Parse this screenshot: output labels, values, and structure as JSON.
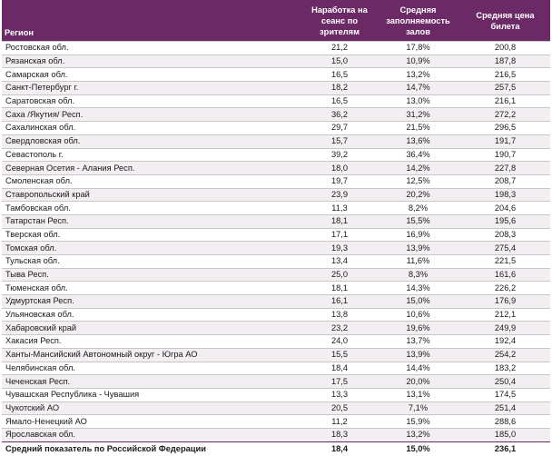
{
  "columns": {
    "region": "Регион",
    "sessions": "Наработка на сеанс по зрителям",
    "occupancy": "Средняя заполняемость залов",
    "price": "Средняя цена билета"
  },
  "rows": [
    {
      "region": "Ростовская обл.",
      "sessions": "21,2",
      "occupancy": "17,8%",
      "price": "200,8"
    },
    {
      "region": "Рязанская обл.",
      "sessions": "15,0",
      "occupancy": "10,9%",
      "price": "187,8"
    },
    {
      "region": "Самарская обл.",
      "sessions": "16,5",
      "occupancy": "13,2%",
      "price": "216,5"
    },
    {
      "region": "Санкт-Петербург г.",
      "sessions": "18,2",
      "occupancy": "14,7%",
      "price": "257,5"
    },
    {
      "region": "Саратовская обл.",
      "sessions": "16,5",
      "occupancy": "13,0%",
      "price": "216,1"
    },
    {
      "region": "Саха /Якутия/ Респ.",
      "sessions": "36,2",
      "occupancy": "31,2%",
      "price": "272,2"
    },
    {
      "region": "Сахалинская обл.",
      "sessions": "29,7",
      "occupancy": "21,5%",
      "price": "296,5"
    },
    {
      "region": "Свердловская обл.",
      "sessions": "15,7",
      "occupancy": "13,6%",
      "price": "191,7"
    },
    {
      "region": "Севастополь г.",
      "sessions": "39,2",
      "occupancy": "36,4%",
      "price": "190,7"
    },
    {
      "region": "Северная Осетия - Алания Респ.",
      "sessions": "18,0",
      "occupancy": "14,2%",
      "price": "227,8"
    },
    {
      "region": "Смоленская обл.",
      "sessions": "19,7",
      "occupancy": "12,5%",
      "price": "208,7"
    },
    {
      "region": "Ставропольский край",
      "sessions": "23,9",
      "occupancy": "20,2%",
      "price": "198,3"
    },
    {
      "region": "Тамбовская обл.",
      "sessions": "11,3",
      "occupancy": "8,2%",
      "price": "204,6"
    },
    {
      "region": "Татарстан Респ.",
      "sessions": "18,1",
      "occupancy": "15,5%",
      "price": "195,6"
    },
    {
      "region": "Тверская обл.",
      "sessions": "17,1",
      "occupancy": "16,9%",
      "price": "208,3"
    },
    {
      "region": "Томская обл.",
      "sessions": "19,3",
      "occupancy": "13,9%",
      "price": "275,4"
    },
    {
      "region": "Тульская обл.",
      "sessions": "13,4",
      "occupancy": "11,6%",
      "price": "221,5"
    },
    {
      "region": "Тыва Респ.",
      "sessions": "25,0",
      "occupancy": "8,3%",
      "price": "161,6"
    },
    {
      "region": "Тюменская обл.",
      "sessions": "18,1",
      "occupancy": "14,3%",
      "price": "226,2"
    },
    {
      "region": "Удмуртская Респ.",
      "sessions": "16,1",
      "occupancy": "15,0%",
      "price": "176,9"
    },
    {
      "region": "Ульяновская обл.",
      "sessions": "13,8",
      "occupancy": "10,6%",
      "price": "212,1"
    },
    {
      "region": "Хабаровский край",
      "sessions": "23,2",
      "occupancy": "19,6%",
      "price": "249,9"
    },
    {
      "region": "Хакасия Респ.",
      "sessions": "24,0",
      "occupancy": "13,7%",
      "price": "192,4"
    },
    {
      "region": "Ханты-Мансийский Автономный округ - Югра АО",
      "sessions": "15,5",
      "occupancy": "13,9%",
      "price": "254,2"
    },
    {
      "region": "Челябинская обл.",
      "sessions": "18,4",
      "occupancy": "14,4%",
      "price": "183,2"
    },
    {
      "region": "Чеченская Респ.",
      "sessions": "17,5",
      "occupancy": "20,0%",
      "price": "250,4"
    },
    {
      "region": "Чувашская Республика - Чувашия",
      "sessions": "13,3",
      "occupancy": "13,1%",
      "price": "174,5"
    },
    {
      "region": "Чукотский АО",
      "sessions": "20,5",
      "occupancy": "7,1%",
      "price": "251,4"
    },
    {
      "region": "Ямало-Ненецкий АО",
      "sessions": "11,2",
      "occupancy": "15,9%",
      "price": "288,6"
    },
    {
      "region": "Ярославская обл.",
      "sessions": "18,3",
      "occupancy": "13,2%",
      "price": "185,0"
    }
  ],
  "total": {
    "region": "Средний показатель по Российской Федерации",
    "sessions": "18,4",
    "occupancy": "15,0%",
    "price": "236,1"
  },
  "colors": {
    "header_bg": "#6b2a66",
    "header_text": "#ffffff",
    "stripe": "#f2eef2"
  }
}
